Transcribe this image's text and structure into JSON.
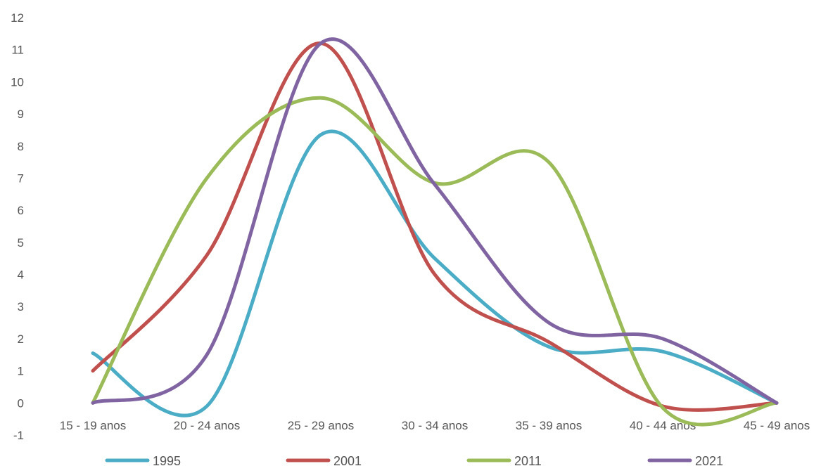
{
  "chart_data": {
    "type": "line",
    "smooth": true,
    "categories": [
      "15 - 19 anos",
      "20 - 24 anos",
      "25 - 29 anos",
      "30 - 34 anos",
      "35 - 39 anos",
      "40 - 44 anos",
      "45 - 49 anos"
    ],
    "series": [
      {
        "name": "1995",
        "color": "#4bacc6",
        "values": [
          1.55,
          -0.1,
          8.35,
          4.5,
          1.75,
          1.6,
          0
        ]
      },
      {
        "name": "2001",
        "color": "#c0504d",
        "values": [
          1.0,
          4.6,
          11.2,
          4.0,
          1.9,
          -0.1,
          0
        ]
      },
      {
        "name": "2011",
        "color": "#9bbb59",
        "values": [
          0,
          7.0,
          9.5,
          6.85,
          7.5,
          -0.15,
          0
        ]
      },
      {
        "name": "2021",
        "color": "#8064a2",
        "values": [
          0,
          1.5,
          11.2,
          6.8,
          2.5,
          2.0,
          0
        ]
      }
    ],
    "ylim": [
      -1,
      12
    ],
    "yticks": [
      "-1",
      "0",
      "1",
      "2",
      "3",
      "4",
      "5",
      "6",
      "7",
      "8",
      "9",
      "10",
      "11",
      "12"
    ],
    "grid": false,
    "legend_position": "bottom"
  }
}
